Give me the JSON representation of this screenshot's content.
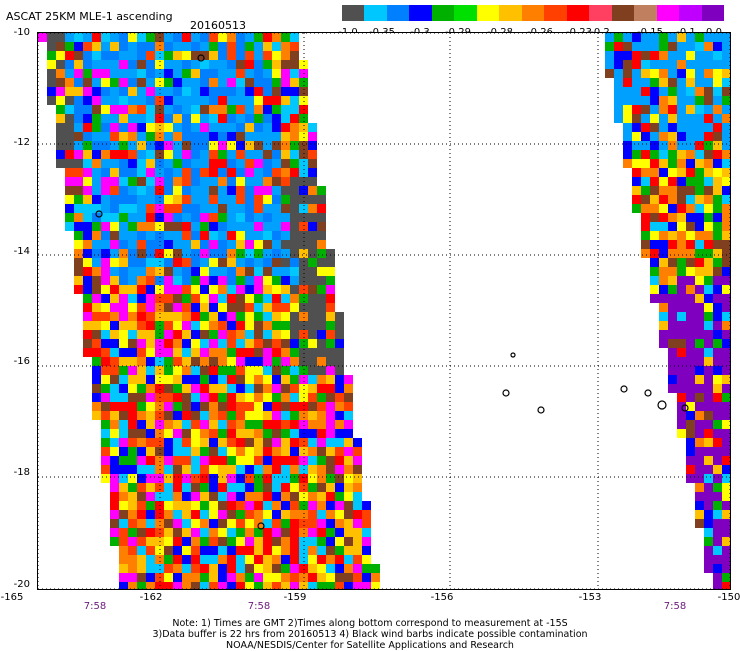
{
  "header": {
    "title": "ASCAT 25KM MLE-1 ascending",
    "date": "20160513"
  },
  "colorbar": {
    "colors": [
      "#505050",
      "#00c8ff",
      "#0080ff",
      "#0000ff",
      "#00b000",
      "#00e000",
      "#ffff00",
      "#ffc000",
      "#ff8000",
      "#ff4000",
      "#ff0000",
      "#ff4060",
      "#804020",
      "#c08060",
      "#ff00ff",
      "#c000ff",
      "#8000c0"
    ],
    "tick_labels": [
      "-1.0",
      "-0.35",
      "-0.3",
      "-0.29",
      "-0.28",
      "-0.26",
      "-0.23",
      "-0.2",
      "-0.15",
      "-0.1",
      "0.0"
    ]
  },
  "map": {
    "lon_range": [
      -165,
      -150
    ],
    "lat_range": [
      -20,
      -10
    ],
    "y_tick_labels": [
      "-10",
      "-12",
      "-14",
      "-16",
      "-18",
      "-20"
    ],
    "x_tick_labels": [
      "-165",
      "-162",
      "-159",
      "-156",
      "-153",
      "-150"
    ],
    "time_labels": [
      "7:58",
      "7:58",
      "7:58"
    ],
    "grid_lines": "dotted"
  },
  "footer": {
    "line1": "Note: 1) Times are GMT 2)Times along bottom correspond to measurement at -15S",
    "line2": "3)Data buffer is 22 hrs from 20160513 4) Black wind barbs indicate possible contamination",
    "line3": "NOAA/NESDIS/Center for Satellite Applications and Research"
  }
}
